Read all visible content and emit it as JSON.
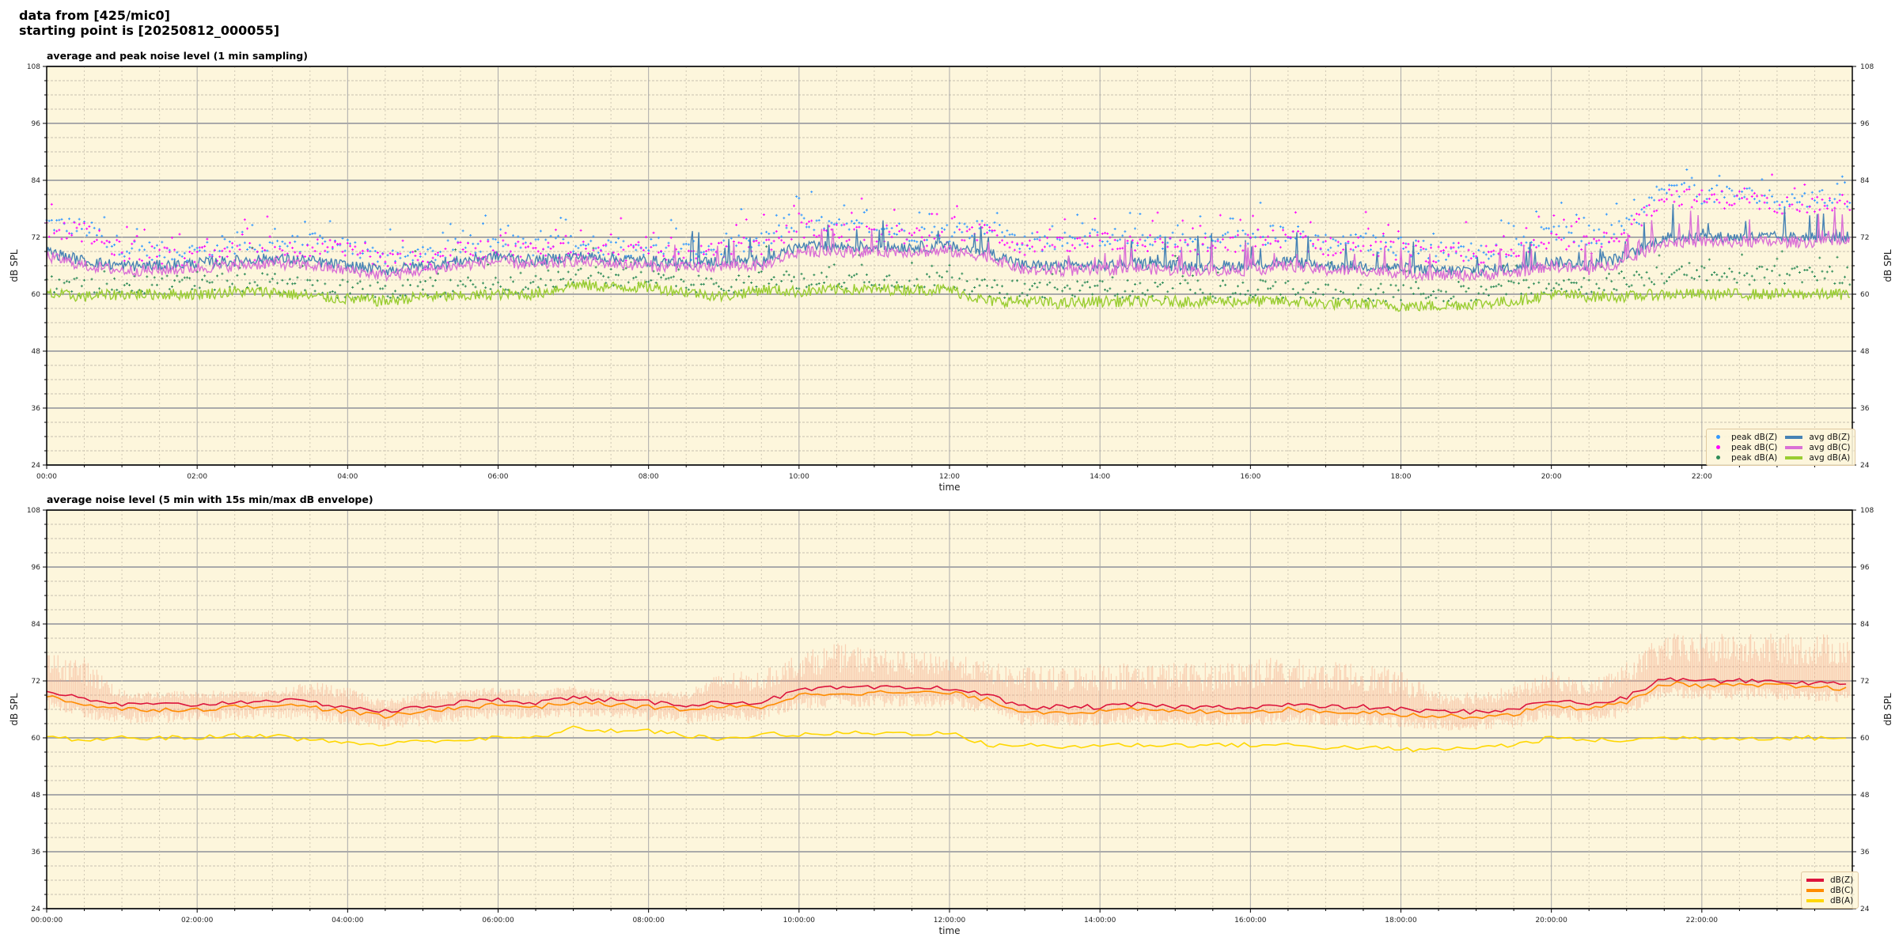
{
  "header": {
    "line1": "data from [425/mic0]",
    "line2": "starting point is [20250812_000055]"
  },
  "chart_data": [
    {
      "type": "line",
      "title": "average and peak noise level (1 min sampling)",
      "xlabel": "time",
      "ylabel": "dB SPL",
      "ylabel_right": "dB SPL",
      "xlim_minutes": [
        0,
        1440
      ],
      "ylim": [
        24,
        108
      ],
      "xticks": [
        "00:00",
        "02:00",
        "04:00",
        "06:00",
        "08:00",
        "10:00",
        "12:00",
        "14:00",
        "16:00",
        "18:00",
        "20:00",
        "22:00"
      ],
      "yticks": [
        "24",
        "36",
        "48",
        "60",
        "72",
        "84",
        "96",
        "108"
      ],
      "grid": true,
      "background": "#fdf6dc",
      "legend_position": "lower-right",
      "x_step_minutes": 30,
      "series": [
        {
          "name": "peak dB(Z)",
          "kind": "points",
          "color": "#3399ff",
          "values": [
            75,
            74,
            70,
            69,
            69,
            70,
            70,
            71,
            70,
            68,
            68,
            70,
            71,
            70,
            71,
            70,
            70,
            69,
            70,
            71,
            75,
            74,
            74,
            73,
            73,
            74,
            71,
            71,
            72,
            72,
            71,
            71,
            72,
            73,
            71,
            71,
            70,
            69,
            69,
            70,
            73,
            71,
            74,
            82,
            81,
            81,
            80,
            80,
            80
          ]
        },
        {
          "name": "peak dB(C)",
          "kind": "points",
          "color": "#ff00ff",
          "values": [
            74,
            73,
            69,
            68,
            68,
            69,
            69,
            70,
            69,
            67,
            67,
            69,
            70,
            69,
            70,
            69,
            69,
            68,
            69,
            70,
            74,
            73,
            73,
            72,
            72,
            73,
            70,
            70,
            71,
            71,
            70,
            70,
            71,
            72,
            70,
            70,
            69,
            68,
            68,
            69,
            72,
            70,
            73,
            81,
            80,
            80,
            79,
            79,
            79
          ]
        },
        {
          "name": "peak dB(A)",
          "kind": "points",
          "color": "#2e8b57",
          "values": [
            62,
            61.5,
            62,
            62,
            62,
            62.5,
            62.5,
            61.5,
            61,
            60.5,
            61.5,
            61.5,
            62,
            62,
            64,
            63.5,
            63.5,
            62.5,
            61.5,
            63,
            62.5,
            63,
            63,
            63,
            63,
            61,
            61,
            60.5,
            61,
            61,
            61,
            61,
            61,
            61,
            60.5,
            60.5,
            60,
            60,
            60.5,
            61,
            62.5,
            62,
            63,
            64,
            64,
            64,
            64,
            64,
            64
          ]
        },
        {
          "name": "avg dB(Z)",
          "kind": "line",
          "color": "#4682b4",
          "values": [
            69,
            67,
            66,
            66,
            66.5,
            67,
            67.5,
            67,
            66,
            65,
            66,
            67,
            68,
            67,
            68,
            67.5,
            67,
            66.5,
            67,
            67,
            70,
            70,
            70,
            70,
            70,
            69,
            66,
            66,
            66,
            66.5,
            66,
            66,
            66,
            67,
            66,
            66,
            65.5,
            65,
            65,
            65.5,
            67,
            66,
            68,
            72,
            72,
            72,
            72,
            72,
            72
          ]
        },
        {
          "name": "avg dB(C)",
          "kind": "line",
          "color": "#da70d6",
          "values": [
            68,
            66,
            65,
            65,
            65.5,
            66,
            66.5,
            66,
            65,
            64,
            65,
            66,
            67,
            66,
            67,
            66.5,
            66,
            65.5,
            66,
            66,
            69,
            69,
            69,
            69,
            69,
            68,
            65,
            65,
            65,
            65.5,
            65,
            65,
            65,
            66,
            65,
            65,
            64.5,
            64,
            64,
            64.5,
            66,
            65,
            67,
            71,
            71,
            71,
            71,
            71,
            71
          ]
        },
        {
          "name": "avg dB(A)",
          "kind": "line",
          "color": "#9acd32",
          "values": [
            60,
            59.5,
            60,
            60,
            60,
            60.5,
            60.5,
            59.5,
            59,
            58.5,
            59.5,
            59.5,
            60,
            60,
            62,
            61.5,
            61.5,
            60.5,
            59.5,
            61,
            60.5,
            61,
            61,
            61,
            61,
            58.5,
            58.5,
            58,
            58.5,
            58.5,
            58.5,
            58.5,
            58.5,
            58.5,
            58,
            58,
            57.5,
            57.5,
            58,
            58.5,
            60,
            59.5,
            59.5,
            60,
            60,
            60,
            60,
            60,
            60
          ]
        }
      ]
    },
    {
      "type": "line",
      "title": "average noise level (5 min with 15s min/max dB envelope)",
      "xlabel": "time",
      "ylabel": "dB SPL",
      "ylabel_right": "dB SPL",
      "xlim_minutes": [
        0,
        1440
      ],
      "ylim": [
        24,
        108
      ],
      "xticks": [
        "00:00:00",
        "02:00:00",
        "04:00:00",
        "06:00:00",
        "08:00:00",
        "10:00:00",
        "12:00:00",
        "14:00:00",
        "16:00:00",
        "18:00:00",
        "20:00:00",
        "22:00:00"
      ],
      "yticks": [
        "24",
        "36",
        "48",
        "60",
        "72",
        "84",
        "96",
        "108"
      ],
      "grid": true,
      "background": "#fdf6dc",
      "legend_position": "lower-right",
      "x_step_minutes": 30,
      "envelope": {
        "color": "#f4a582",
        "max": [
          78,
          77,
          70,
          70,
          70,
          70,
          70,
          72,
          71,
          68,
          70,
          70,
          71,
          70,
          71,
          70,
          70,
          70,
          74,
          74,
          78,
          80,
          79,
          78,
          78,
          76,
          75,
          75,
          76,
          76,
          76,
          76,
          77,
          77,
          76,
          76,
          74,
          70,
          70,
          71,
          74,
          72,
          76,
          82,
          82,
          82,
          82,
          82,
          82
        ]
      },
      "series": [
        {
          "name": "dB(Z)",
          "color": "#dc143c",
          "values": [
            70,
            68,
            67,
            67,
            67,
            67.5,
            68,
            67.5,
            66.5,
            65.5,
            66.5,
            67.5,
            68,
            67.5,
            68.5,
            68,
            67.5,
            67,
            67.5,
            67.5,
            70,
            70.5,
            70.5,
            70.5,
            70.5,
            69,
            66.5,
            66.5,
            66.5,
            67,
            66.5,
            66.5,
            66.5,
            67,
            66.5,
            66.5,
            66,
            65.5,
            65.5,
            66,
            68,
            67,
            68.5,
            72.5,
            72,
            72,
            72,
            71.5,
            71.5
          ]
        },
        {
          "name": "dB(C)",
          "color": "#ff8c00",
          "values": [
            69,
            67,
            66,
            66,
            66,
            66.5,
            67,
            66.5,
            65.5,
            64.5,
            65.5,
            66.5,
            67,
            66.5,
            67.5,
            67,
            66.5,
            66,
            66.5,
            66.5,
            69,
            69.5,
            69.5,
            69.5,
            69.5,
            68,
            65.5,
            65.5,
            65.5,
            66,
            65.5,
            65.5,
            65.5,
            66,
            65.5,
            65.5,
            65,
            64.5,
            64.5,
            65,
            67,
            66,
            67.5,
            71.5,
            71,
            71,
            71,
            70.5,
            70.5
          ]
        },
        {
          "name": "dB(A)",
          "color": "#ffd700",
          "values": [
            60,
            59.5,
            60,
            60,
            60,
            60.5,
            60.5,
            59.5,
            59,
            58.5,
            59.5,
            59.5,
            60,
            60,
            62,
            61.5,
            61.5,
            60.5,
            59.5,
            61,
            60.5,
            61,
            61,
            61,
            61,
            58.5,
            58.5,
            58,
            58.5,
            58.5,
            58.5,
            58.5,
            58.5,
            58.5,
            58,
            58,
            57.5,
            57.5,
            58,
            58.5,
            60,
            59.5,
            59.5,
            60,
            60,
            60,
            60,
            60,
            60
          ]
        }
      ]
    }
  ]
}
